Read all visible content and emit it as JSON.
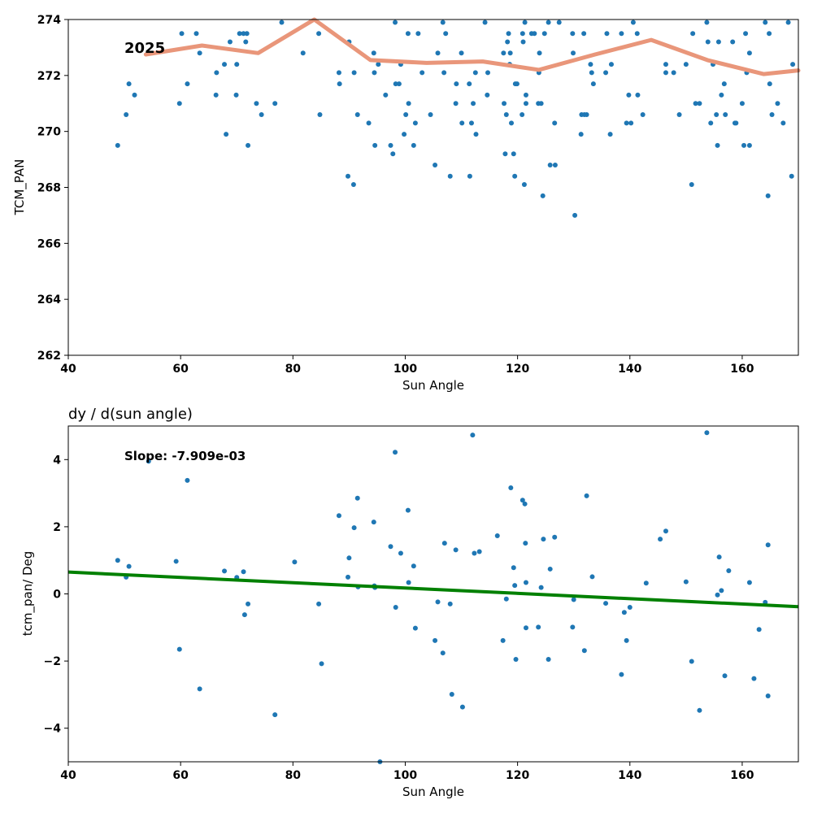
{
  "chart_data": [
    {
      "type": "scatter",
      "xlabel": "Sun Angle",
      "ylabel": "TCM_PAN",
      "xlim": [
        40,
        170
      ],
      "ylim": [
        262,
        274
      ],
      "xticks": [
        40,
        60,
        80,
        100,
        120,
        140,
        160
      ],
      "yticks": [
        262,
        264,
        266,
        268,
        270,
        272,
        274
      ],
      "grid": false,
      "annotation": "2025",
      "colors": {
        "points": "#1f77b4",
        "line": "#e9967a"
      },
      "points": [
        [
          48.8,
          269.5
        ],
        [
          50.3,
          270.6
        ],
        [
          50.8,
          271.7
        ],
        [
          51.8,
          271.3
        ],
        [
          59.8,
          271.0
        ],
        [
          60.2,
          273.5
        ],
        [
          61.2,
          271.7
        ],
        [
          62.8,
          273.5
        ],
        [
          63.4,
          272.8
        ],
        [
          66.3,
          271.3
        ],
        [
          66.4,
          272.1
        ],
        [
          67.8,
          272.4
        ],
        [
          68.1,
          269.9
        ],
        [
          68.8,
          273.2
        ],
        [
          69.9,
          271.3
        ],
        [
          70.0,
          272.4
        ],
        [
          70.5,
          273.5
        ],
        [
          71.2,
          273.5
        ],
        [
          71.6,
          273.2
        ],
        [
          71.8,
          273.5
        ],
        [
          72.0,
          269.5
        ],
        [
          73.5,
          271.0
        ],
        [
          74.4,
          270.6
        ],
        [
          76.8,
          271.0
        ],
        [
          78.0,
          273.9
        ],
        [
          81.8,
          272.8
        ],
        [
          84.6,
          273.5
        ],
        [
          84.8,
          270.6
        ],
        [
          88.2,
          272.1
        ],
        [
          88.3,
          271.7
        ],
        [
          89.8,
          268.4
        ],
        [
          90.0,
          273.2
        ],
        [
          90.8,
          268.1
        ],
        [
          90.9,
          272.1
        ],
        [
          91.5,
          270.6
        ],
        [
          93.5,
          270.3
        ],
        [
          94.4,
          272.8
        ],
        [
          94.5,
          272.1
        ],
        [
          94.6,
          269.5
        ],
        [
          95.2,
          272.4
        ],
        [
          96.5,
          271.3
        ],
        [
          97.4,
          269.5
        ],
        [
          97.8,
          269.2
        ],
        [
          98.2,
          273.9
        ],
        [
          98.3,
          271.7
        ],
        [
          98.9,
          271.7
        ],
        [
          99.2,
          272.4
        ],
        [
          99.8,
          269.9
        ],
        [
          100.1,
          270.6
        ],
        [
          100.5,
          273.5
        ],
        [
          100.6,
          271.0
        ],
        [
          101.5,
          269.5
        ],
        [
          101.8,
          270.3
        ],
        [
          102.3,
          273.5
        ],
        [
          103.0,
          272.1
        ],
        [
          104.5,
          270.6
        ],
        [
          105.3,
          268.8
        ],
        [
          105.8,
          272.8
        ],
        [
          106.7,
          273.9
        ],
        [
          106.9,
          272.1
        ],
        [
          107.2,
          273.5
        ],
        [
          108.0,
          268.4
        ],
        [
          109.0,
          271.0
        ],
        [
          109.1,
          271.7
        ],
        [
          110.0,
          272.8
        ],
        [
          110.1,
          270.3
        ],
        [
          111.4,
          271.7
        ],
        [
          111.5,
          268.4
        ],
        [
          111.8,
          270.3
        ],
        [
          112.1,
          271.0
        ],
        [
          112.5,
          272.1
        ],
        [
          112.6,
          269.9
        ],
        [
          114.2,
          273.9
        ],
        [
          114.6,
          271.3
        ],
        [
          114.7,
          272.1
        ],
        [
          117.5,
          272.8
        ],
        [
          117.6,
          271.0
        ],
        [
          117.8,
          269.2
        ],
        [
          118.0,
          270.6
        ],
        [
          118.2,
          273.2
        ],
        [
          118.4,
          273.5
        ],
        [
          118.6,
          272.4
        ],
        [
          118.7,
          272.8
        ],
        [
          118.9,
          270.3
        ],
        [
          119.3,
          269.2
        ],
        [
          119.5,
          268.4
        ],
        [
          119.6,
          271.7
        ],
        [
          119.9,
          271.7
        ],
        [
          120.8,
          270.6
        ],
        [
          120.9,
          273.5
        ],
        [
          121.0,
          273.2
        ],
        [
          121.2,
          268.1
        ],
        [
          121.3,
          273.9
        ],
        [
          121.5,
          271.3
        ],
        [
          121.5,
          271.0
        ],
        [
          122.5,
          273.5
        ],
        [
          123.0,
          273.5
        ],
        [
          123.7,
          271.0
        ],
        [
          123.8,
          272.1
        ],
        [
          123.9,
          272.8
        ],
        [
          124.2,
          271.0
        ],
        [
          124.5,
          267.7
        ],
        [
          124.8,
          273.5
        ],
        [
          125.5,
          273.9
        ],
        [
          125.8,
          268.8
        ],
        [
          126.6,
          270.3
        ],
        [
          126.7,
          268.8
        ],
        [
          127.4,
          273.9
        ],
        [
          129.8,
          273.5
        ],
        [
          129.9,
          272.8
        ],
        [
          130.2,
          267.0
        ],
        [
          131.3,
          269.9
        ],
        [
          131.4,
          270.6
        ],
        [
          131.8,
          273.5
        ],
        [
          131.9,
          270.6
        ],
        [
          132.3,
          270.6
        ],
        [
          133.0,
          272.4
        ],
        [
          133.2,
          272.1
        ],
        [
          133.5,
          271.7
        ],
        [
          135.7,
          272.1
        ],
        [
          135.9,
          273.5
        ],
        [
          136.5,
          269.9
        ],
        [
          136.7,
          272.4
        ],
        [
          138.5,
          273.5
        ],
        [
          139.4,
          270.3
        ],
        [
          139.8,
          271.3
        ],
        [
          140.2,
          270.3
        ],
        [
          140.6,
          273.9
        ],
        [
          141.3,
          273.5
        ],
        [
          141.4,
          271.3
        ],
        [
          142.3,
          270.6
        ],
        [
          146.4,
          272.1
        ],
        [
          146.4,
          272.4
        ],
        [
          147.8,
          272.1
        ],
        [
          148.8,
          270.6
        ],
        [
          150.0,
          272.4
        ],
        [
          151.0,
          268.1
        ],
        [
          151.2,
          273.5
        ],
        [
          151.7,
          271.0
        ],
        [
          152.4,
          271.0
        ],
        [
          153.7,
          273.9
        ],
        [
          153.9,
          273.2
        ],
        [
          154.4,
          270.3
        ],
        [
          154.8,
          272.4
        ],
        [
          155.4,
          270.6
        ],
        [
          155.6,
          269.5
        ],
        [
          155.8,
          273.2
        ],
        [
          156.3,
          271.3
        ],
        [
          156.8,
          271.7
        ],
        [
          157.0,
          270.6
        ],
        [
          158.3,
          273.2
        ],
        [
          158.7,
          270.3
        ],
        [
          158.9,
          270.3
        ],
        [
          160.0,
          271.0
        ],
        [
          160.3,
          269.5
        ],
        [
          160.6,
          273.5
        ],
        [
          160.8,
          272.1
        ],
        [
          161.3,
          269.5
        ],
        [
          161.3,
          272.8
        ],
        [
          164.1,
          273.9
        ],
        [
          164.6,
          267.7
        ],
        [
          164.8,
          273.5
        ],
        [
          164.9,
          271.7
        ],
        [
          165.3,
          270.6
        ],
        [
          166.3,
          271.0
        ],
        [
          167.3,
          270.3
        ],
        [
          168.2,
          273.9
        ],
        [
          168.8,
          268.4
        ],
        [
          169.0,
          272.4
        ]
      ],
      "line": [
        [
          53.8,
          272.75
        ],
        [
          63.8,
          273.07
        ],
        [
          73.8,
          272.8
        ],
        [
          83.8,
          274.2
        ],
        [
          93.8,
          272.55
        ],
        [
          103.8,
          272.45
        ],
        [
          113.8,
          272.5
        ],
        [
          123.8,
          272.2
        ],
        [
          133.8,
          272.75
        ],
        [
          143.8,
          273.27
        ],
        [
          153.8,
          272.55
        ],
        [
          163.8,
          272.05
        ],
        [
          170,
          272.18
        ]
      ]
    },
    {
      "type": "scatter",
      "title": "dy / d(sun angle)",
      "xlabel": "Sun Angle",
      "ylabel": "tcm_pan/ Deg",
      "xlim": [
        40,
        170
      ],
      "ylim": [
        -5,
        5
      ],
      "xticks": [
        40,
        60,
        80,
        100,
        120,
        140,
        160
      ],
      "yticks": [
        -4,
        -2,
        0,
        2,
        4
      ],
      "ytick_labels": [
        "−4",
        "−2",
        "0",
        "2",
        "4"
      ],
      "grid": false,
      "annotation": "Slope: -7.909e-03",
      "colors": {
        "points": "#1f77b4",
        "line": "#008000"
      },
      "points": [
        [
          48.8,
          1.0
        ],
        [
          50.3,
          0.5
        ],
        [
          50.8,
          0.82
        ],
        [
          54.3,
          3.95
        ],
        [
          59.2,
          0.97
        ],
        [
          59.8,
          -1.65
        ],
        [
          61.2,
          3.38
        ],
        [
          63.4,
          -2.83
        ],
        [
          67.8,
          0.68
        ],
        [
          70.0,
          0.49
        ],
        [
          71.2,
          0.66
        ],
        [
          71.4,
          -0.62
        ],
        [
          72.0,
          -0.3
        ],
        [
          76.8,
          -3.6
        ],
        [
          80.3,
          0.95
        ],
        [
          84.6,
          -0.3
        ],
        [
          85.1,
          -2.08
        ],
        [
          88.2,
          2.33
        ],
        [
          89.8,
          0.5
        ],
        [
          90.0,
          1.07
        ],
        [
          90.9,
          1.97
        ],
        [
          91.5,
          2.85
        ],
        [
          91.6,
          0.21
        ],
        [
          94.4,
          2.14
        ],
        [
          94.5,
          0.24
        ],
        [
          94.6,
          0.19
        ],
        [
          95.5,
          -5.0
        ],
        [
          97.4,
          1.41
        ],
        [
          98.2,
          4.22
        ],
        [
          98.3,
          -0.4
        ],
        [
          99.2,
          1.21
        ],
        [
          100.5,
          2.49
        ],
        [
          100.6,
          0.34
        ],
        [
          101.5,
          0.83
        ],
        [
          101.8,
          -1.02
        ],
        [
          105.3,
          -1.39
        ],
        [
          105.8,
          -0.24
        ],
        [
          106.7,
          -1.76
        ],
        [
          107.0,
          1.51
        ],
        [
          108.0,
          -0.3
        ],
        [
          108.3,
          -2.99
        ],
        [
          109.0,
          1.31
        ],
        [
          110.2,
          -3.37
        ],
        [
          112.0,
          4.73
        ],
        [
          112.3,
          1.21
        ],
        [
          113.2,
          1.26
        ],
        [
          116.4,
          1.73
        ],
        [
          117.4,
          -1.39
        ],
        [
          118.0,
          -0.15
        ],
        [
          118.8,
          3.16
        ],
        [
          119.3,
          0.78
        ],
        [
          119.5,
          0.25
        ],
        [
          119.7,
          -1.95
        ],
        [
          120.9,
          2.79
        ],
        [
          121.3,
          2.68
        ],
        [
          121.4,
          1.51
        ],
        [
          121.5,
          0.34
        ],
        [
          121.5,
          -1.01
        ],
        [
          123.7,
          -0.99
        ],
        [
          124.2,
          0.19
        ],
        [
          124.6,
          1.63
        ],
        [
          125.5,
          -1.95
        ],
        [
          125.8,
          0.74
        ],
        [
          126.6,
          1.69
        ],
        [
          129.8,
          -0.99
        ],
        [
          130.0,
          -0.17
        ],
        [
          131.9,
          -1.69
        ],
        [
          132.3,
          2.92
        ],
        [
          133.3,
          0.51
        ],
        [
          135.7,
          -0.28
        ],
        [
          138.5,
          -2.4
        ],
        [
          139.0,
          -0.55
        ],
        [
          139.4,
          -1.39
        ],
        [
          140.0,
          -0.4
        ],
        [
          142.9,
          0.32
        ],
        [
          145.4,
          1.63
        ],
        [
          146.4,
          1.87
        ],
        [
          150.0,
          0.36
        ],
        [
          151.0,
          -2.01
        ],
        [
          152.4,
          -3.47
        ],
        [
          153.7,
          4.8
        ],
        [
          155.6,
          -0.03
        ],
        [
          155.9,
          1.1
        ],
        [
          156.3,
          0.1
        ],
        [
          156.9,
          -2.44
        ],
        [
          157.6,
          0.69
        ],
        [
          161.3,
          0.34
        ],
        [
          162.1,
          -2.52
        ],
        [
          163.0,
          -1.06
        ],
        [
          164.1,
          -0.25
        ],
        [
          164.6,
          1.46
        ],
        [
          164.6,
          -3.04
        ]
      ],
      "fit_line": [
        [
          40,
          0.65
        ],
        [
          170,
          -0.38
        ]
      ]
    }
  ]
}
